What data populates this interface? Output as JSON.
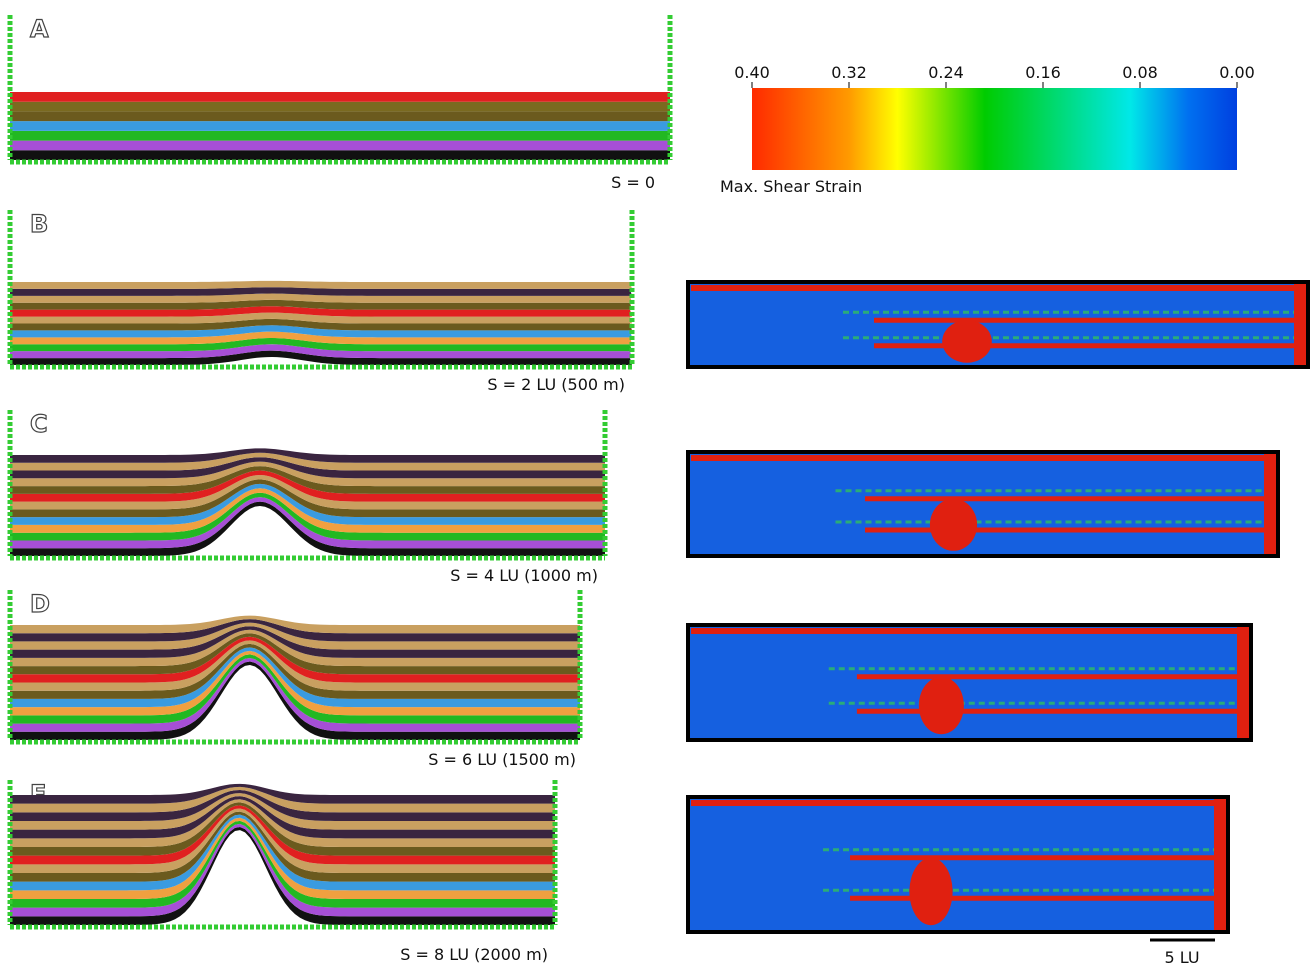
{
  "colorbar": {
    "lim": [
      0.4,
      0
    ],
    "ticks": [
      {
        "value": 0.4,
        "label": "0.40"
      },
      {
        "value": 0.32,
        "label": "0.32"
      },
      {
        "value": 0.24,
        "label": "0.24"
      },
      {
        "value": 0.16,
        "label": "0.16"
      },
      {
        "value": 0.08,
        "label": "0.08"
      },
      {
        "value": 0,
        "label": "0.00"
      }
    ],
    "label": "Max. Shear Strain"
  },
  "panels": [
    {
      "label": "A",
      "caption": "S = 0"
    },
    {
      "label": "B",
      "caption": "S = 2 LU (500 m)"
    },
    {
      "label": "C",
      "caption": "S = 4 LU (1000 m)"
    },
    {
      "label": "D",
      "caption": "S = 6 LU (1500 m)"
    },
    {
      "label": "E",
      "caption": "S = 8 LU (2000 m)"
    }
  ],
  "scale_bar": {
    "label": "5 LU"
  }
}
